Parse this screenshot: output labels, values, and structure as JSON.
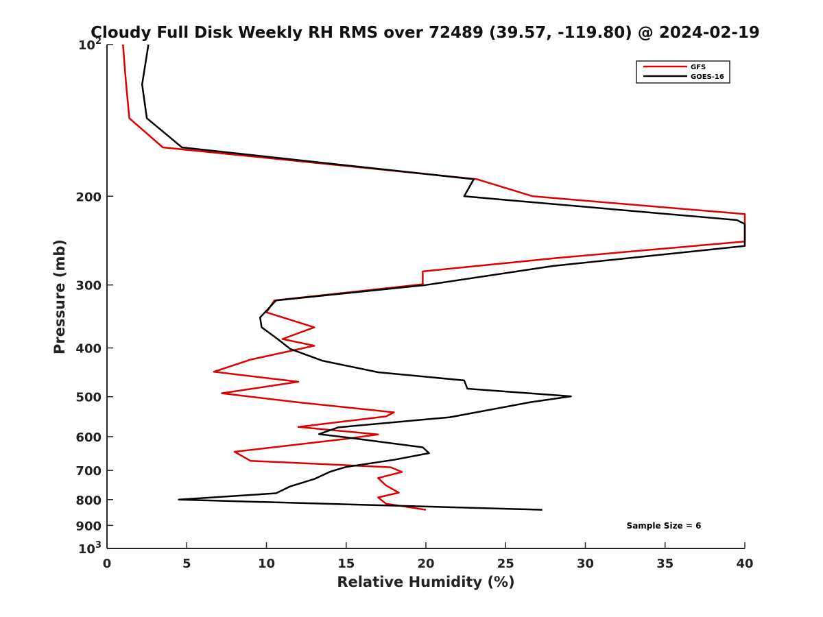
{
  "chart_data": {
    "type": "line",
    "title": "Cloudy Full Disk Weekly RH RMS over 72489 (39.57, -119.80) @ 2024-02-19",
    "xlabel": "Relative Humidity (%)",
    "ylabel": "Pressure (mb)",
    "xlim": [
      0,
      40
    ],
    "ylim": [
      100,
      1000
    ],
    "y_scale": "log",
    "y_reversed": true,
    "x_ticks": [
      "0",
      "5",
      "10",
      "15",
      "20",
      "25",
      "30",
      "35",
      "40"
    ],
    "y_ticks": [
      {
        "value": 100,
        "base": "10",
        "exp": "2"
      },
      {
        "value": 200,
        "label": "200"
      },
      {
        "value": 300,
        "label": "300"
      },
      {
        "value": 400,
        "label": "400"
      },
      {
        "value": 500,
        "label": "500"
      },
      {
        "value": 600,
        "label": "600"
      },
      {
        "value": 700,
        "label": "700"
      },
      {
        "value": 800,
        "label": "800"
      },
      {
        "value": 900,
        "label": "900"
      },
      {
        "value": 1000,
        "base": "10",
        "exp": "3"
      }
    ],
    "grid": false,
    "legend_position": "top-right",
    "annotation": "Sample Size = 6",
    "series": [
      {
        "name": "GFS",
        "color": "#dd0000",
        "points": [
          [
            1.0,
            100
          ],
          [
            1.2,
            120
          ],
          [
            1.4,
            140
          ],
          [
            3.5,
            160
          ],
          [
            23.2,
            185
          ],
          [
            26.7,
            200
          ],
          [
            40.0,
            217
          ],
          [
            40.0,
            246
          ],
          [
            28.3,
            265
          ],
          [
            19.8,
            282
          ],
          [
            19.8,
            299
          ],
          [
            10.5,
            322
          ],
          [
            10.0,
            340
          ],
          [
            13.0,
            364
          ],
          [
            11.0,
            384
          ],
          [
            13.0,
            396
          ],
          [
            9.0,
            422
          ],
          [
            6.7,
            446
          ],
          [
            12.0,
            467
          ],
          [
            7.2,
            492
          ],
          [
            12.0,
            513
          ],
          [
            18.0,
            537
          ],
          [
            17.5,
            547
          ],
          [
            12.0,
            574
          ],
          [
            17.0,
            594
          ],
          [
            15.0,
            606
          ],
          [
            8.0,
            643
          ],
          [
            9.0,
            670
          ],
          [
            17.8,
            690
          ],
          [
            18.5,
            705
          ],
          [
            17.0,
            725
          ],
          [
            17.5,
            750
          ],
          [
            18.3,
            775
          ],
          [
            17.0,
            792
          ],
          [
            17.5,
            815
          ],
          [
            20.0,
            838
          ]
        ]
      },
      {
        "name": "GOES-16",
        "color": "#000000",
        "points": [
          [
            2.6,
            100
          ],
          [
            2.2,
            120
          ],
          [
            2.5,
            140
          ],
          [
            4.7,
            160
          ],
          [
            23.0,
            185
          ],
          [
            22.4,
            200
          ],
          [
            39.5,
            223
          ],
          [
            40.0,
            227
          ],
          [
            40.0,
            251
          ],
          [
            28.0,
            275
          ],
          [
            20.0,
            300
          ],
          [
            10.6,
            322
          ],
          [
            9.6,
            348
          ],
          [
            9.7,
            364
          ],
          [
            10.7,
            384
          ],
          [
            11.5,
            402
          ],
          [
            13.5,
            424
          ],
          [
            17.0,
            447
          ],
          [
            22.4,
            464
          ],
          [
            22.6,
            482
          ],
          [
            29.1,
            499
          ],
          [
            26.5,
            513
          ],
          [
            21.5,
            549
          ],
          [
            14.5,
            575
          ],
          [
            13.3,
            593
          ],
          [
            15.0,
            602
          ],
          [
            19.8,
            630
          ],
          [
            20.2,
            647
          ],
          [
            18.0,
            667
          ],
          [
            15.0,
            689
          ],
          [
            14.0,
            704
          ],
          [
            13.0,
            728
          ],
          [
            11.5,
            753
          ],
          [
            10.6,
            777
          ],
          [
            4.5,
            800
          ],
          [
            27.3,
            838
          ]
        ]
      }
    ]
  }
}
